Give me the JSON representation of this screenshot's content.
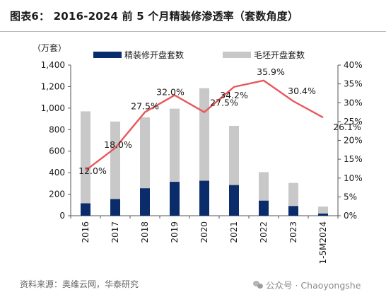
{
  "title": "图表6：   2016-2024 前 5 个月精装修渗透率（套数角度）",
  "source": "资料来源：奥维云网，华泰研究",
  "watermark": "公众号 · Chaoyongshe",
  "watermark_icon": "wechat-icon",
  "colors": {
    "bar_dark": "#0b2c6b",
    "bar_light": "#c8c8c8",
    "line": "#e8575a"
  },
  "chart_data": {
    "type": "bar",
    "categories": [
      "2016",
      "2017",
      "2018",
      "2019",
      "2020",
      "2021",
      "2022",
      "2023",
      "1-5M2024"
    ],
    "left_axis": {
      "unit": "（万套）",
      "ylim": [
        0,
        1400
      ],
      "ticks": [
        "0",
        "200",
        "400",
        "600",
        "800",
        "1,000",
        "1,200",
        "1,400"
      ]
    },
    "right_axis": {
      "ylim": [
        0,
        40
      ],
      "ticks": [
        "0%",
        "5%",
        "10%",
        "15%",
        "20%",
        "25%",
        "30%",
        "35%",
        "40%"
      ]
    },
    "legend": [
      "精装修开盘套数",
      "毛坯开盘套数"
    ],
    "series": [
      {
        "name": "精装修开盘套数",
        "type": "bar",
        "values": [
          115,
          155,
          255,
          315,
          325,
          285,
          140,
          90,
          20
        ]
      },
      {
        "name": "毛坯开盘套数",
        "type": "bar",
        "values": [
          855,
          720,
          660,
          680,
          860,
          550,
          265,
          215,
          65
        ]
      },
      {
        "name": "渗透率",
        "type": "line",
        "axis": "right",
        "values": [
          12.0,
          18.0,
          27.5,
          32.0,
          27.5,
          34.2,
          35.9,
          30.4,
          26.1
        ],
        "labels": [
          "12.0%",
          "18.0%",
          "27.5%",
          "32.0%",
          "27.5%",
          "34.2%",
          "35.9%",
          "30.4%",
          "26.1%"
        ]
      }
    ],
    "grid": false
  }
}
